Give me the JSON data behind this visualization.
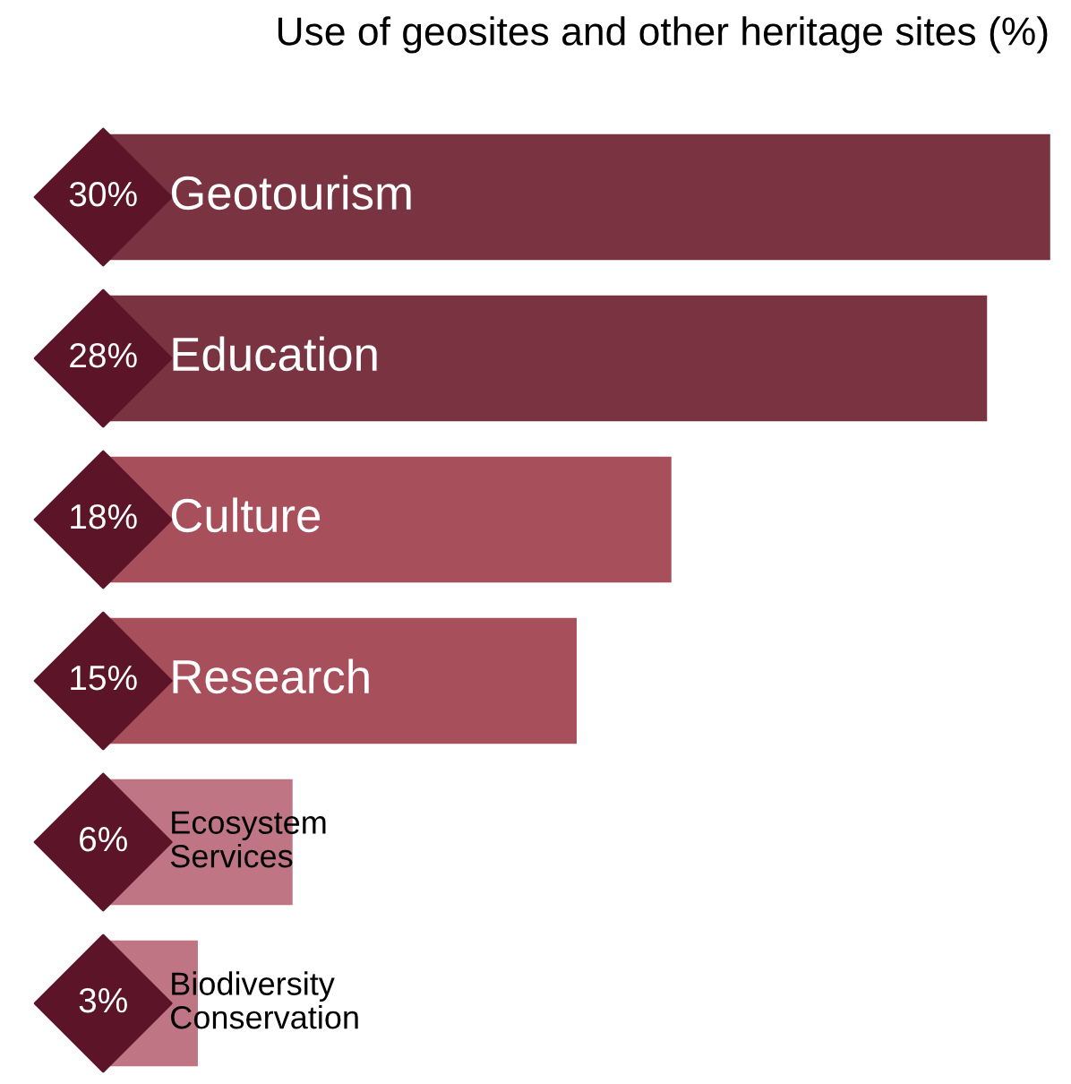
{
  "chart_data": {
    "type": "bar",
    "orientation": "horizontal",
    "title": "Use of geosites and other heritage sites (%)",
    "categories": [
      "Geotourism",
      "Education",
      "Culture",
      "Research",
      "Ecosystem\nServices",
      "Biodiversity\nConservation"
    ],
    "values": [
      30,
      28,
      18,
      15,
      6,
      3
    ],
    "colors": [
      "#7a3340",
      "#7a3340",
      "#a84f5c",
      "#a84f5c",
      "#c07585",
      "#c07585"
    ],
    "value_labels": [
      "30%",
      "28%",
      "18%",
      "15%",
      "6%",
      "3%"
    ],
    "tick_labels": false
  }
}
